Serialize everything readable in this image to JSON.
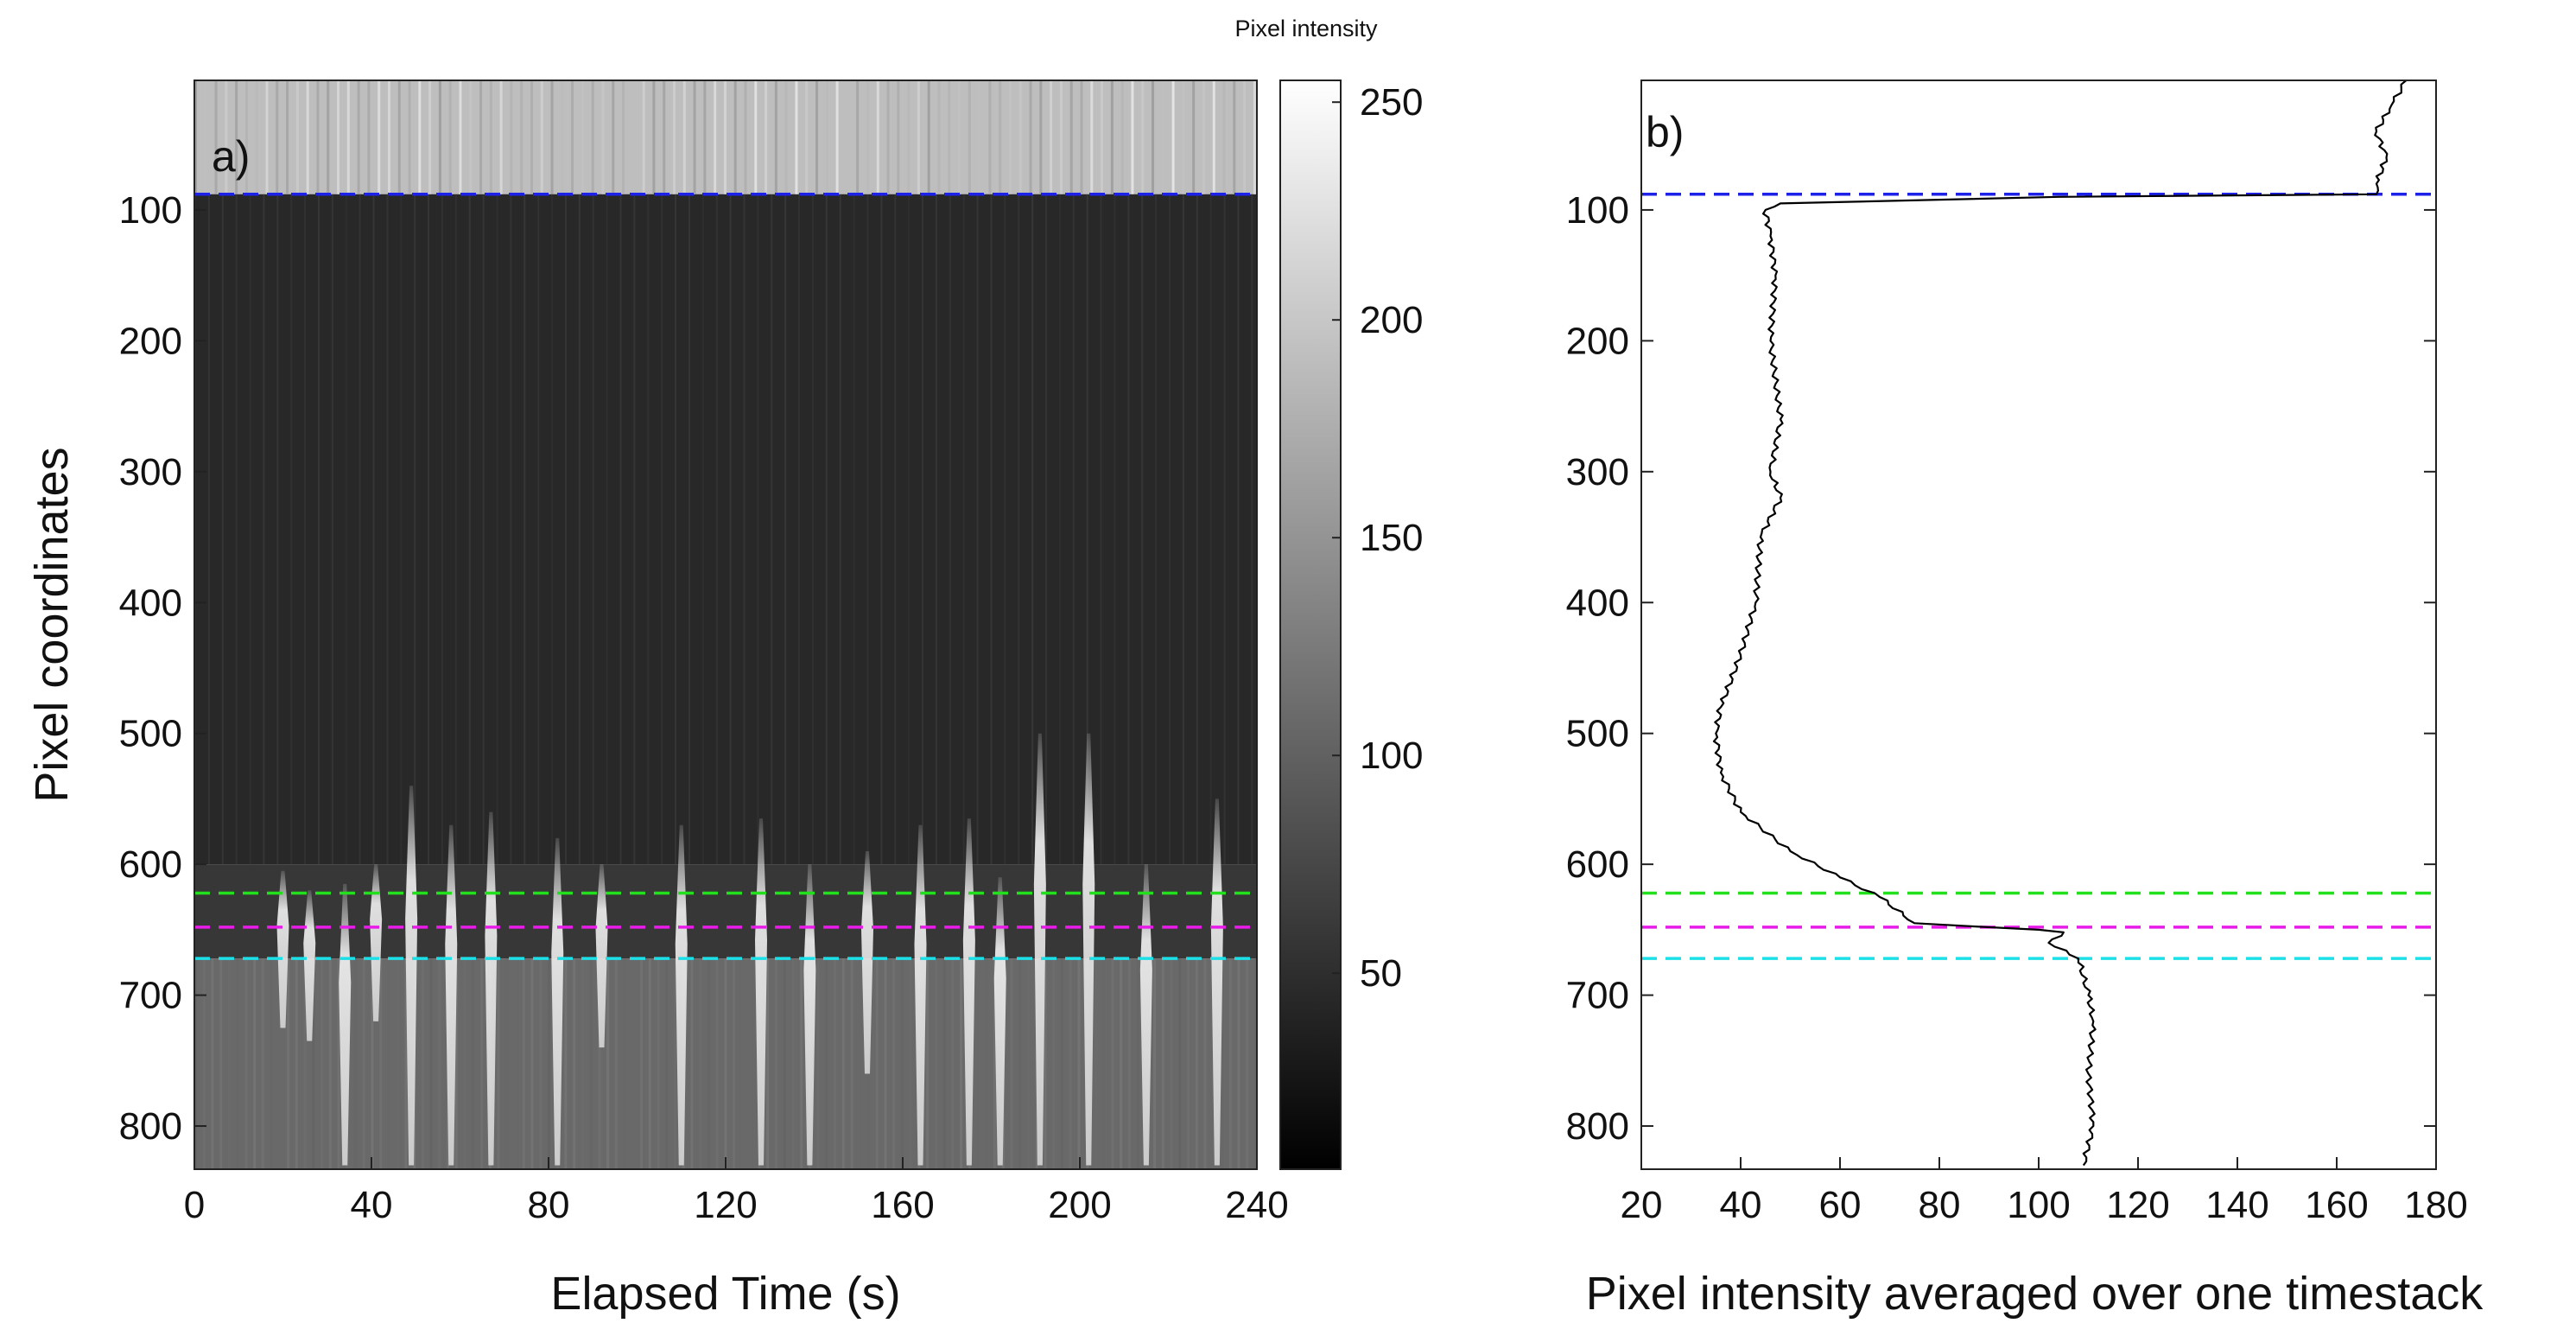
{
  "chart_data": [
    {
      "type": "heatmap",
      "panel_label": "a)",
      "xlabel": "Elapsed Time (s)",
      "ylabel": "Pixel coordinates",
      "xlim": [
        0,
        240
      ],
      "ylim": [
        833,
        1
      ],
      "x_ticks": [
        "0",
        "40",
        "80",
        "120",
        "160",
        "200",
        "240"
      ],
      "y_ticks": [
        "100",
        "200",
        "300",
        "400",
        "500",
        "600",
        "700",
        "800"
      ],
      "colorbar": {
        "title": "Pixel intensity",
        "range": [
          5,
          255
        ],
        "ticks": [
          "50",
          "100",
          "150",
          "200",
          "250"
        ],
        "colormap": "gray"
      },
      "zones": [
        {
          "y_from": 1,
          "y_to": 88,
          "intensity": 190
        },
        {
          "y_from": 88,
          "y_to": 600,
          "intensity": 40
        },
        {
          "y_from": 600,
          "y_to": 672,
          "intensity": 55
        },
        {
          "y_from": 672,
          "y_to": 833,
          "intensity": 105
        }
      ],
      "wave_streaks": [
        {
          "t": 20,
          "top": 605,
          "bottom": 725
        },
        {
          "t": 26,
          "top": 620,
          "bottom": 735
        },
        {
          "t": 34,
          "top": 615,
          "bottom": 830
        },
        {
          "t": 41,
          "top": 600,
          "bottom": 720
        },
        {
          "t": 49,
          "top": 540,
          "bottom": 830
        },
        {
          "t": 58,
          "top": 570,
          "bottom": 830
        },
        {
          "t": 67,
          "top": 560,
          "bottom": 830
        },
        {
          "t": 82,
          "top": 580,
          "bottom": 830
        },
        {
          "t": 92,
          "top": 600,
          "bottom": 740
        },
        {
          "t": 110,
          "top": 570,
          "bottom": 830
        },
        {
          "t": 128,
          "top": 565,
          "bottom": 830
        },
        {
          "t": 139,
          "top": 600,
          "bottom": 830
        },
        {
          "t": 152,
          "top": 590,
          "bottom": 760
        },
        {
          "t": 164,
          "top": 570,
          "bottom": 830
        },
        {
          "t": 175,
          "top": 565,
          "bottom": 830
        },
        {
          "t": 182,
          "top": 610,
          "bottom": 830
        },
        {
          "t": 191,
          "top": 500,
          "bottom": 830
        },
        {
          "t": 202,
          "top": 500,
          "bottom": 830
        },
        {
          "t": 215,
          "top": 600,
          "bottom": 830
        },
        {
          "t": 231,
          "top": 550,
          "bottom": 830
        }
      ],
      "reference_lines": [
        {
          "y": 88,
          "color": "#1c22e8"
        },
        {
          "y": 622,
          "color": "#22e01c"
        },
        {
          "y": 648,
          "color": "#e81ce8"
        },
        {
          "y": 672,
          "color": "#1ce0e8"
        }
      ]
    },
    {
      "type": "line",
      "panel_label": "b)",
      "xlabel": "Pixel intensity averaged over one timestack",
      "ylabel": "",
      "xlim": [
        20,
        180
      ],
      "ylim": [
        833,
        1
      ],
      "x_ticks": [
        "20",
        "40",
        "60",
        "80",
        "100",
        "120",
        "140",
        "160",
        "180"
      ],
      "y_ticks": [
        "100",
        "200",
        "300",
        "400",
        "500",
        "600",
        "700",
        "800"
      ],
      "series": [
        {
          "name": "mean intensity profile",
          "color": "#000000",
          "points": [
            [
              174,
              1
            ],
            [
              171,
              20
            ],
            [
              168,
              40
            ],
            [
              170,
              60
            ],
            [
              168,
              80
            ],
            [
              168,
              88
            ],
            [
              104,
              90
            ],
            [
              48,
              95
            ],
            [
              45,
              100
            ],
            [
              46,
              120
            ],
            [
              47,
              150
            ],
            [
              46,
              200
            ],
            [
              48,
              260
            ],
            [
              46,
              300
            ],
            [
              48,
              320
            ],
            [
              44,
              350
            ],
            [
              43,
              400
            ],
            [
              40,
              440
            ],
            [
              36,
              480
            ],
            [
              35,
              500
            ],
            [
              36,
              530
            ],
            [
              40,
              560
            ],
            [
              50,
              590
            ],
            [
              60,
              610
            ],
            [
              68,
              625
            ],
            [
              75,
              645
            ],
            [
              100,
              650
            ],
            [
              105,
              652
            ],
            [
              102,
              660
            ],
            [
              108,
              672
            ],
            [
              110,
              700
            ],
            [
              111,
              720
            ],
            [
              110,
              760
            ],
            [
              111,
              800
            ],
            [
              109,
              830
            ]
          ]
        }
      ],
      "reference_lines": [
        {
          "y": 88,
          "color": "#1c22e8"
        },
        {
          "y": 622,
          "color": "#22e01c"
        },
        {
          "y": 648,
          "color": "#e81ce8"
        },
        {
          "y": 672,
          "color": "#1ce0e8"
        }
      ]
    }
  ]
}
